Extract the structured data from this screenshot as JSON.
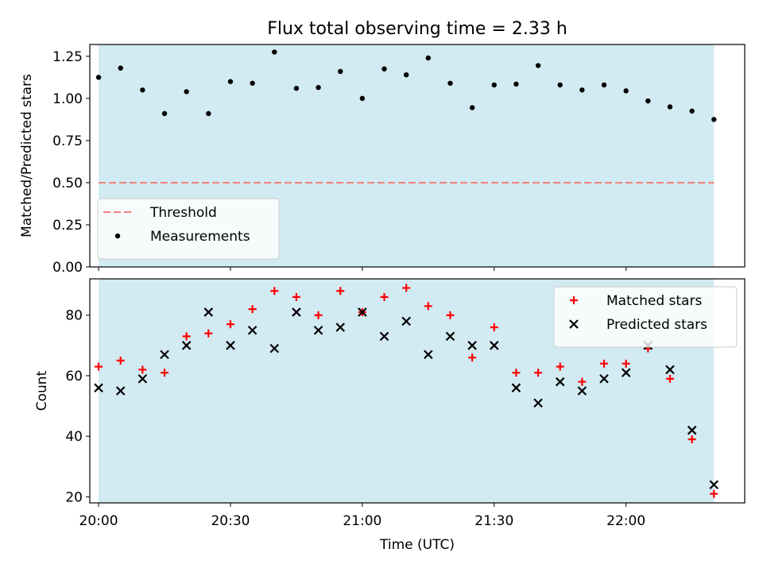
{
  "chart_data": [
    {
      "type": "scatter",
      "title": "Flux total observing time = 2.33 h",
      "xlabel": "",
      "ylabel": "Matched/Predicted stars",
      "xlim": [
        "19:58",
        "22:27"
      ],
      "ylim": [
        0,
        1.32
      ],
      "yticks": [
        "0.00",
        "0.25",
        "0.50",
        "0.75",
        "1.00",
        "1.25"
      ],
      "shaded_span": [
        "20:00",
        "22:20"
      ],
      "shade_color": "#add8e6",
      "threshold": {
        "label": "Threshold",
        "value": 0.5,
        "color": "#f08080"
      },
      "legend_position": "lower-left",
      "series": [
        {
          "name": "Measurements",
          "marker": "dot",
          "color": "#000000",
          "x": [
            "20:00",
            "20:05",
            "20:10",
            "20:15",
            "20:20",
            "20:25",
            "20:30",
            "20:35",
            "20:40",
            "20:45",
            "20:50",
            "20:55",
            "21:00",
            "21:05",
            "21:10",
            "21:15",
            "21:20",
            "21:25",
            "21:30",
            "21:35",
            "21:40",
            "21:45",
            "21:50",
            "21:55",
            "22:00",
            "22:05",
            "22:10",
            "22:15",
            "22:20"
          ],
          "y": [
            1.125,
            1.18,
            1.05,
            0.91,
            1.04,
            0.91,
            1.1,
            1.09,
            1.275,
            1.06,
            1.065,
            1.16,
            1.0,
            1.175,
            1.14,
            1.24,
            1.09,
            0.945,
            1.08,
            1.085,
            1.195,
            1.08,
            1.05,
            1.08,
            1.045,
            0.985,
            0.95,
            0.925,
            0.875
          ]
        }
      ]
    },
    {
      "type": "scatter",
      "title": "",
      "xlabel": "Time (UTC)",
      "ylabel": "Count",
      "xlim": [
        "19:58",
        "22:27"
      ],
      "ylim": [
        18,
        92
      ],
      "yticks": [
        "20",
        "40",
        "60",
        "80"
      ],
      "xticks": [
        "20:00",
        "20:30",
        "21:00",
        "21:30",
        "22:00"
      ],
      "shaded_span": [
        "20:00",
        "22:20"
      ],
      "shade_color": "#add8e6",
      "legend_position": "upper-right",
      "series": [
        {
          "name": "Matched stars",
          "marker": "plus",
          "color": "#ff0000",
          "x": [
            "20:00",
            "20:05",
            "20:10",
            "20:15",
            "20:20",
            "20:25",
            "20:30",
            "20:35",
            "20:40",
            "20:45",
            "20:50",
            "20:55",
            "21:00",
            "21:05",
            "21:10",
            "21:15",
            "21:20",
            "21:25",
            "21:30",
            "21:35",
            "21:40",
            "21:45",
            "21:50",
            "21:55",
            "22:00",
            "22:05",
            "22:10",
            "22:15",
            "22:20"
          ],
          "y": [
            63,
            65,
            62,
            61,
            73,
            74,
            77,
            82,
            88,
            86,
            80,
            88,
            81,
            86,
            89,
            83,
            80,
            66,
            76,
            61,
            61,
            63,
            58,
            64,
            64,
            69,
            59,
            39,
            21
          ]
        },
        {
          "name": "Predicted stars",
          "marker": "x",
          "color": "#000000",
          "x": [
            "20:00",
            "20:05",
            "20:10",
            "20:15",
            "20:20",
            "20:25",
            "20:30",
            "20:35",
            "20:40",
            "20:45",
            "20:50",
            "20:55",
            "21:00",
            "21:05",
            "21:10",
            "21:15",
            "21:20",
            "21:25",
            "21:30",
            "21:35",
            "21:40",
            "21:45",
            "21:50",
            "21:55",
            "22:00",
            "22:05",
            "22:10",
            "22:15",
            "22:20"
          ],
          "y": [
            56,
            55,
            59,
            67,
            70,
            81,
            70,
            75,
            69,
            81,
            75,
            76,
            81,
            73,
            78,
            67,
            73,
            70,
            70,
            56,
            51,
            58,
            55,
            59,
            61,
            70,
            62,
            42,
            24
          ]
        }
      ]
    }
  ]
}
